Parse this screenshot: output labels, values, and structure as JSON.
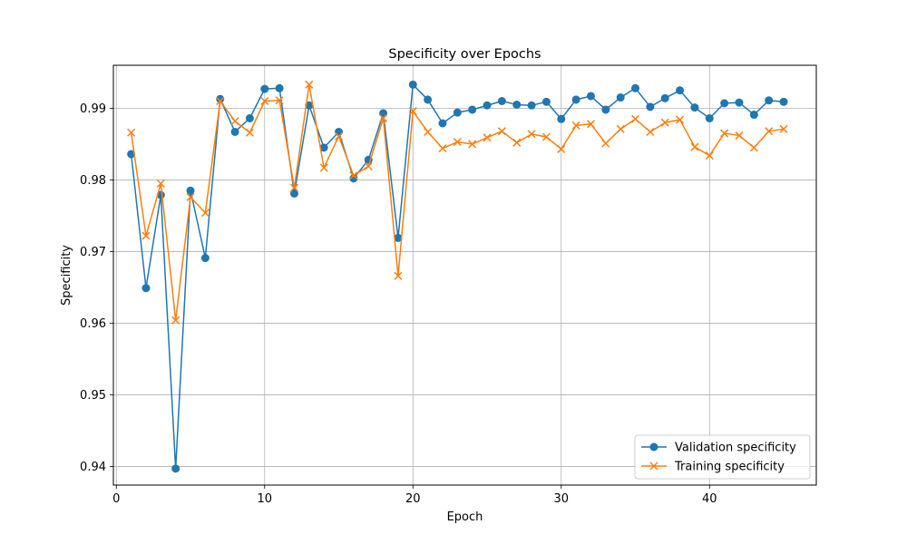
{
  "chart_data": {
    "type": "line",
    "title": "Specificity over Epochs",
    "xlabel": "Epoch",
    "ylabel": "Specificity",
    "xlim": [
      -0.2,
      47.2
    ],
    "ylim": [
      0.9374,
      0.996
    ],
    "xticks": [
      0,
      10,
      20,
      30,
      40
    ],
    "xtick_labels": [
      "0",
      "10",
      "20",
      "30",
      "40"
    ],
    "yticks": [
      0.94,
      0.95,
      0.96,
      0.97,
      0.98,
      0.99
    ],
    "ytick_labels": [
      "0.94",
      "0.95",
      "0.96",
      "0.97",
      "0.98",
      "0.99"
    ],
    "grid": true,
    "legend_position": "lower-right",
    "x": [
      1,
      2,
      3,
      4,
      5,
      6,
      7,
      8,
      9,
      10,
      11,
      12,
      13,
      14,
      15,
      16,
      17,
      18,
      19,
      20,
      21,
      22,
      23,
      24,
      25,
      26,
      27,
      28,
      29,
      30,
      31,
      32,
      33,
      34,
      35,
      36,
      37,
      38,
      39,
      40,
      41,
      42,
      43,
      44,
      45
    ],
    "series": [
      {
        "name": "Validation specificity",
        "color": "#1f77b4",
        "marker": "circle",
        "values": [
          0.9836,
          0.9649,
          0.9779,
          0.9397,
          0.9785,
          0.9691,
          0.9913,
          0.9867,
          0.9886,
          0.9927,
          0.9928,
          0.9781,
          0.9904,
          0.9845,
          0.9867,
          0.9802,
          0.9828,
          0.9893,
          0.9719,
          0.9933,
          0.9912,
          0.9879,
          0.9894,
          0.9898,
          0.9904,
          0.991,
          0.9905,
          0.9904,
          0.9909,
          0.9885,
          0.9912,
          0.9917,
          0.9898,
          0.9915,
          0.9928,
          0.9902,
          0.9914,
          0.9925,
          0.9901,
          0.9886,
          0.9907,
          0.9908,
          0.9891,
          0.9911,
          0.9909
        ]
      },
      {
        "name": "Training specificity",
        "color": "#ff7f0e",
        "marker": "x",
        "values": [
          0.9866,
          0.9722,
          0.9795,
          0.9604,
          0.9776,
          0.9754,
          0.991,
          0.9882,
          0.9866,
          0.991,
          0.9911,
          0.9789,
          0.9933,
          0.9817,
          0.9861,
          0.9806,
          0.9819,
          0.9886,
          0.9666,
          0.9896,
          0.9867,
          0.9844,
          0.9853,
          0.985,
          0.9859,
          0.9868,
          0.9852,
          0.9864,
          0.986,
          0.9843,
          0.9876,
          0.9878,
          0.9851,
          0.9871,
          0.9885,
          0.9867,
          0.988,
          0.9884,
          0.9846,
          0.9834,
          0.9865,
          0.9862,
          0.9845,
          0.9868,
          0.9871
        ]
      }
    ]
  }
}
